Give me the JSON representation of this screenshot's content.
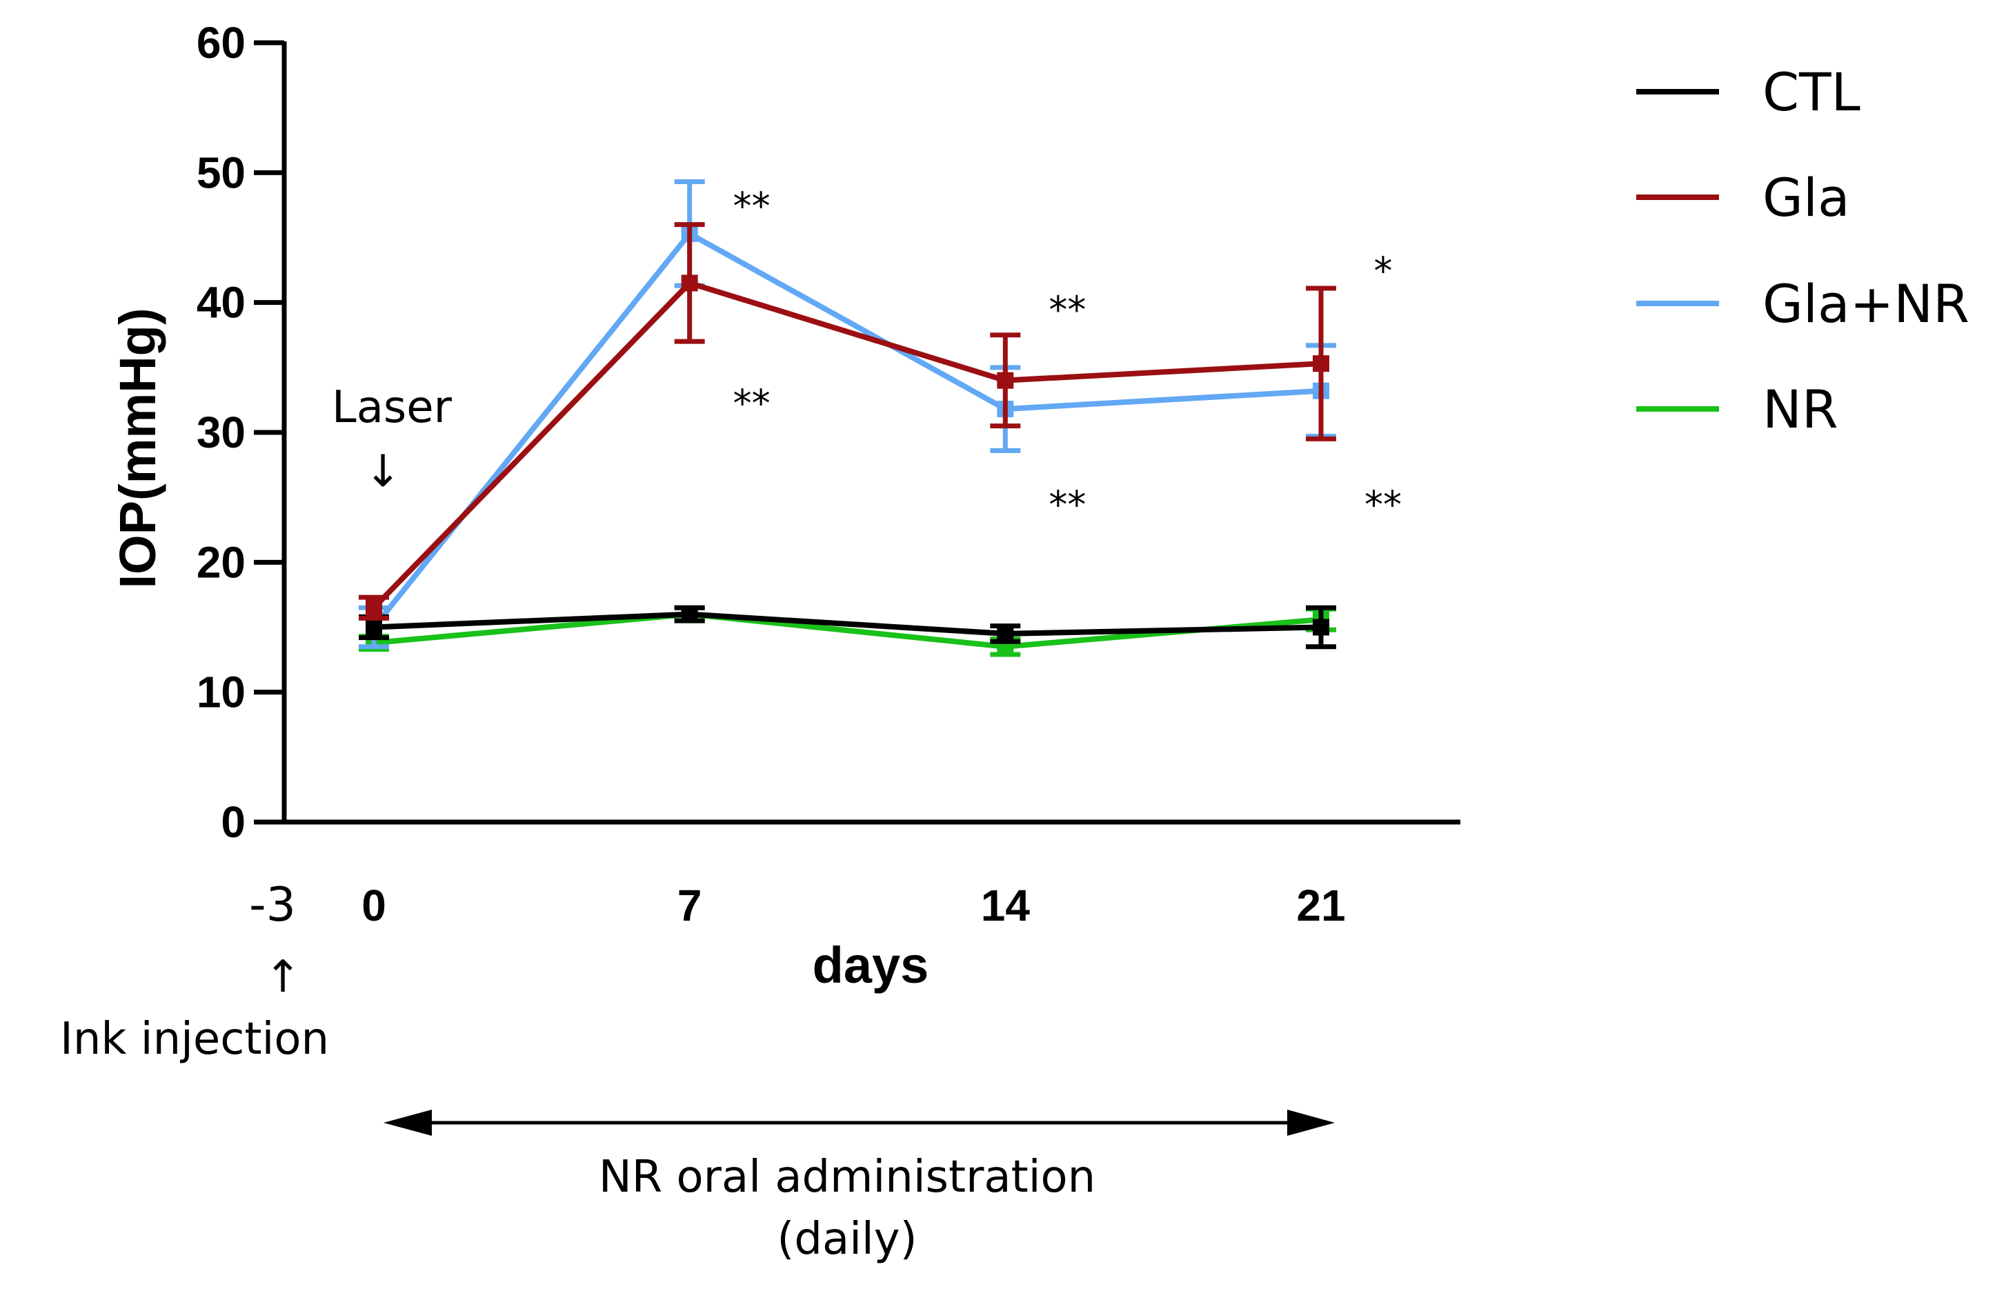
{
  "chart_data": {
    "type": "line",
    "title": "",
    "xlabel": "days",
    "ylabel": "IOP(mmHg)",
    "ylim": [
      0,
      60
    ],
    "yticks": [
      0,
      10,
      20,
      30,
      40,
      50,
      60
    ],
    "x": [
      0,
      7,
      14,
      21
    ],
    "xtick_labels": [
      "-3",
      "0",
      "7",
      "14",
      "21"
    ],
    "grid": false,
    "legend_position": "top-right",
    "series": [
      {
        "name": "CTL",
        "color": "#000000",
        "values": [
          15.0,
          16.0,
          14.5,
          15.0
        ],
        "error": [
          0.8,
          0.5,
          0.6,
          1.5
        ]
      },
      {
        "name": "Gla",
        "color": "#9b0f12",
        "values": [
          16.5,
          41.5,
          34.0,
          35.3
        ],
        "error": [
          0.8,
          4.5,
          3.5,
          5.8
        ]
      },
      {
        "name": "Gla+NR",
        "color": "#62a8f4",
        "values": [
          15.0,
          45.3,
          31.8,
          33.2
        ],
        "error": [
          1.5,
          4.0,
          3.2,
          3.5
        ]
      },
      {
        "name": "NR",
        "color": "#19c119",
        "values": [
          13.8,
          16.0,
          13.5,
          15.6
        ],
        "error": [
          0.5,
          0.5,
          0.6,
          0.8
        ]
      }
    ],
    "significance": [
      {
        "text": "**",
        "x": 7,
        "y": 47.5
      },
      {
        "text": "**",
        "x": 7,
        "y": 32.3
      },
      {
        "text": "**",
        "x": 14,
        "y": 39.5
      },
      {
        "text": "**",
        "x": 14,
        "y": 24.5
      },
      {
        "text": "*",
        "x": 21,
        "y": 42.5
      },
      {
        "text": "**",
        "x": 21,
        "y": 24.5
      }
    ],
    "annotations": {
      "laser": "Laser",
      "laser_arrow": "↓",
      "ink_arrow": "↑",
      "ink": "Ink injection",
      "admin_line1": "NR oral administration",
      "admin_line2": "(daily)"
    }
  }
}
